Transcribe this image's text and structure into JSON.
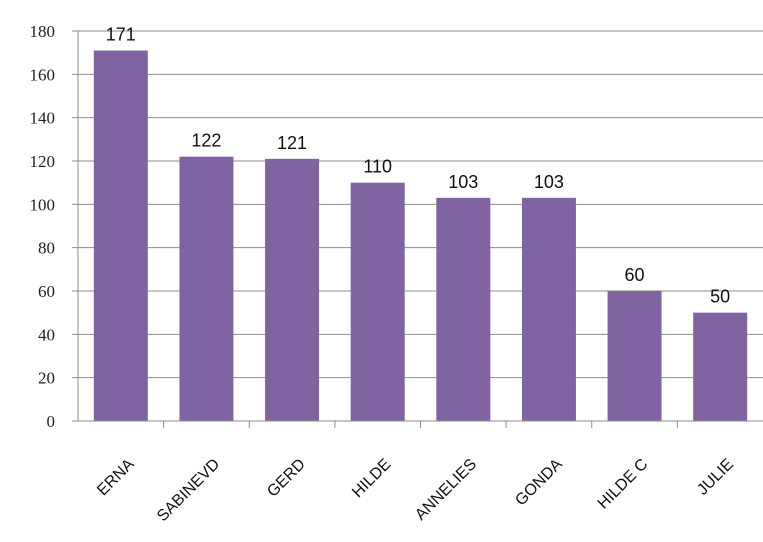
{
  "chart_data": {
    "type": "bar",
    "categories": [
      "ERNA",
      "SABINEVD",
      "GERD",
      "HILDE",
      "ANNELIES",
      "GONDA",
      "HILDE C",
      "JULIE"
    ],
    "values": [
      171,
      122,
      121,
      110,
      103,
      103,
      60,
      50
    ],
    "data_labels": [
      "171",
      "122",
      "121",
      "110",
      "103",
      "103",
      "60",
      "50"
    ],
    "y_ticks": [
      "0",
      "20",
      "40",
      "60",
      "80",
      "100",
      "120",
      "140",
      "160",
      "180"
    ],
    "title": "",
    "xlabel": "",
    "ylabel": "",
    "ylim": [
      0,
      180
    ],
    "grid": true,
    "legend": "none",
    "bar_color": "#8064a2"
  }
}
